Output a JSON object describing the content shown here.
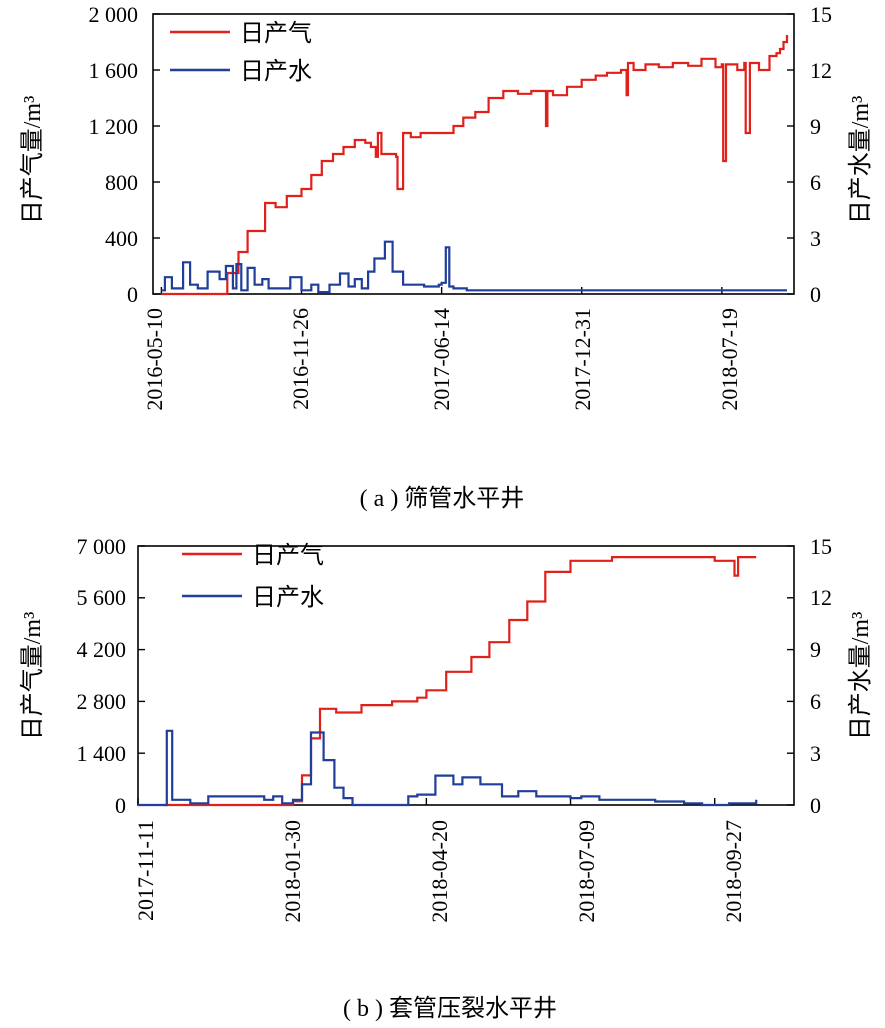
{
  "colors": {
    "gas": "#e0201b",
    "water": "#1f3f9a",
    "axis": "#000000"
  },
  "chart_data": [
    {
      "type": "line",
      "caption": "( a ) 筛管水平井",
      "y_left_label": "日产气量/m³",
      "y_right_label": "日产水量/m³",
      "x_ticks": [
        "2016-05-10",
        "2016-11-26",
        "2017-06-14",
        "2017-12-31",
        "2018-07-19"
      ],
      "x_domain": [
        "2016-04-28",
        "2018-10-30"
      ],
      "y_left_ticks": [
        "0",
        "400",
        "800",
        "1 200",
        "1 600",
        "2 000"
      ],
      "y_left_lim": [
        0,
        2000
      ],
      "y_right_ticks": [
        "0",
        "3",
        "6",
        "9",
        "12",
        "15"
      ],
      "y_right_lim": [
        0,
        15
      ],
      "legend": {
        "position": "top-left",
        "gas": "日产气",
        "water": "日产水"
      },
      "series": [
        {
          "name": "日产气",
          "axis": "left",
          "color_key": "gas",
          "x": [
            "2016-05-10",
            "2016-08-10",
            "2016-08-12",
            "2016-08-28",
            "2016-09-10",
            "2016-09-25",
            "2016-10-05",
            "2016-10-20",
            "2016-11-05",
            "2016-11-26",
            "2016-12-10",
            "2016-12-25",
            "2017-01-10",
            "2017-01-25",
            "2017-02-10",
            "2017-02-25",
            "2017-03-05",
            "2017-03-12",
            "2017-03-15",
            "2017-03-20",
            "2017-04-01",
            "2017-04-10",
            "2017-04-12",
            "2017-04-20",
            "2017-05-01",
            "2017-05-15",
            "2017-06-01",
            "2017-06-14",
            "2017-07-01",
            "2017-07-15",
            "2017-08-01",
            "2017-08-20",
            "2017-09-10",
            "2017-10-01",
            "2017-10-20",
            "2017-11-01",
            "2017-11-10",
            "2017-11-12",
            "2017-11-20",
            "2017-12-10",
            "2017-12-31",
            "2018-01-20",
            "2018-02-05",
            "2018-02-25",
            "2018-03-05",
            "2018-03-07",
            "2018-03-15",
            "2018-04-01",
            "2018-04-20",
            "2018-05-10",
            "2018-06-01",
            "2018-06-20",
            "2018-07-10",
            "2018-07-19",
            "2018-07-21",
            "2018-07-25",
            "2018-08-10",
            "2018-08-20",
            "2018-08-22",
            "2018-08-28",
            "2018-09-10",
            "2018-09-25",
            "2018-10-05",
            "2018-10-10",
            "2018-10-15",
            "2018-10-20"
          ],
          "y": [
            0,
            0,
            150,
            300,
            450,
            450,
            650,
            620,
            700,
            750,
            850,
            950,
            1000,
            1050,
            1100,
            1080,
            1050,
            980,
            1150,
            1000,
            1000,
            980,
            750,
            1150,
            1120,
            1150,
            1150,
            1150,
            1200,
            1260,
            1300,
            1400,
            1450,
            1430,
            1450,
            1450,
            1200,
            1450,
            1420,
            1480,
            1530,
            1560,
            1580,
            1600,
            1420,
            1650,
            1600,
            1640,
            1620,
            1650,
            1630,
            1680,
            1620,
            1640,
            950,
            1640,
            1600,
            1650,
            1150,
            1650,
            1600,
            1700,
            1720,
            1750,
            1800,
            1850
          ]
        },
        {
          "name": "日产水",
          "axis": "right",
          "color_key": "water",
          "x": [
            "2016-05-10",
            "2016-05-15",
            "2016-05-25",
            "2016-06-10",
            "2016-06-20",
            "2016-07-01",
            "2016-07-15",
            "2016-08-01",
            "2016-08-10",
            "2016-08-20",
            "2016-08-25",
            "2016-09-01",
            "2016-09-10",
            "2016-09-20",
            "2016-10-01",
            "2016-10-10",
            "2016-10-25",
            "2016-11-10",
            "2016-11-26",
            "2016-12-10",
            "2016-12-20",
            "2017-01-05",
            "2017-01-20",
            "2017-02-01",
            "2017-02-10",
            "2017-02-20",
            "2017-03-01",
            "2017-03-10",
            "2017-03-25",
            "2017-04-05",
            "2017-04-20",
            "2017-05-01",
            "2017-05-20",
            "2017-06-10",
            "2017-06-14",
            "2017-06-20",
            "2017-06-25",
            "2017-07-01",
            "2017-07-20",
            "2017-08-20",
            "2017-09-20",
            "2017-10-20",
            "2017-11-20",
            "2017-12-20",
            "2018-01-20",
            "2018-02-20",
            "2018-03-20",
            "2018-04-20",
            "2018-05-20",
            "2018-06-20",
            "2018-07-20",
            "2018-08-20",
            "2018-09-20",
            "2018-10-20"
          ],
          "y": [
            0.2,
            0.9,
            0.3,
            1.7,
            0.5,
            0.3,
            1.2,
            0.8,
            1.5,
            0.3,
            1.6,
            0.2,
            1.4,
            0.5,
            0.8,
            0.3,
            0.3,
            0.9,
            0.2,
            0.5,
            0.1,
            0.5,
            1.1,
            0.4,
            0.8,
            0.3,
            1.2,
            1.9,
            2.8,
            1.2,
            0.5,
            0.5,
            0.4,
            0.5,
            0.6,
            2.5,
            0.4,
            0.3,
            0.2,
            0.2,
            0.2,
            0.2,
            0.2,
            0.2,
            0.2,
            0.2,
            0.2,
            0.2,
            0.2,
            0.2,
            0.2,
            0.2,
            0.2,
            0.2
          ]
        }
      ]
    },
    {
      "type": "line",
      "caption": "( b ) 套管压裂水平井",
      "y_left_label": "日产气量/m³",
      "y_right_label": "日产水量/m³",
      "x_ticks": [
        "2017-11-11",
        "2018-01-30",
        "2018-04-20",
        "2018-07-09",
        "2018-09-27"
      ],
      "x_domain": [
        "2017-11-11",
        "2018-11-10"
      ],
      "y_left_ticks": [
        "0",
        "1 400",
        "2 800",
        "4 200",
        "5 600",
        "7 000"
      ],
      "y_left_lim": [
        0,
        7000
      ],
      "y_right_ticks": [
        "0",
        "3",
        "6",
        "9",
        "12",
        "15"
      ],
      "y_right_lim": [
        0,
        15
      ],
      "legend": {
        "position": "top-left",
        "gas": "日产气",
        "water": "日产水"
      },
      "series": [
        {
          "name": "日产气",
          "axis": "left",
          "color_key": "gas",
          "x": [
            "2017-11-25",
            "2018-01-28",
            "2018-02-05",
            "2018-02-10",
            "2018-02-15",
            "2018-02-20",
            "2018-03-01",
            "2018-03-15",
            "2018-04-01",
            "2018-04-15",
            "2018-04-20",
            "2018-05-01",
            "2018-05-15",
            "2018-05-25",
            "2018-06-05",
            "2018-06-15",
            "2018-06-25",
            "2018-07-09",
            "2018-08-01",
            "2018-09-01",
            "2018-09-27",
            "2018-10-05",
            "2018-10-08",
            "2018-10-10",
            "2018-10-20"
          ],
          "y": [
            0,
            0,
            100,
            800,
            1800,
            2600,
            2500,
            2700,
            2800,
            2900,
            3100,
            3600,
            4000,
            4400,
            5000,
            5500,
            6300,
            6600,
            6700,
            6700,
            6600,
            6600,
            6200,
            6700,
            6700
          ]
        },
        {
          "name": "日产水",
          "axis": "right",
          "color_key": "water",
          "x": [
            "2017-11-11",
            "2017-11-25",
            "2017-11-27",
            "2017-11-30",
            "2017-12-10",
            "2017-12-20",
            "2018-01-01",
            "2018-01-10",
            "2018-01-20",
            "2018-01-25",
            "2018-01-30",
            "2018-02-05",
            "2018-02-10",
            "2018-02-15",
            "2018-02-22",
            "2018-02-28",
            "2018-03-05",
            "2018-03-10",
            "2018-03-20",
            "2018-04-01",
            "2018-04-10",
            "2018-04-15",
            "2018-04-25",
            "2018-05-05",
            "2018-05-10",
            "2018-05-20",
            "2018-06-01",
            "2018-06-10",
            "2018-06-20",
            "2018-07-01",
            "2018-07-09",
            "2018-07-15",
            "2018-07-25",
            "2018-08-10",
            "2018-08-25",
            "2018-09-10",
            "2018-09-20",
            "2018-10-05",
            "2018-10-20"
          ],
          "y": [
            0,
            0,
            4.3,
            0.3,
            0.1,
            0.5,
            0.5,
            0.5,
            0.3,
            0.5,
            0.1,
            0.3,
            1.2,
            4.2,
            2.6,
            1.0,
            0.4,
            0.0,
            0.0,
            0.0,
            0.5,
            0.6,
            1.7,
            1.2,
            1.6,
            1.2,
            0.5,
            0.8,
            0.5,
            0.5,
            0.4,
            0.5,
            0.3,
            0.3,
            0.2,
            0.1,
            0.0,
            0.1,
            0.3
          ]
        }
      ]
    }
  ]
}
